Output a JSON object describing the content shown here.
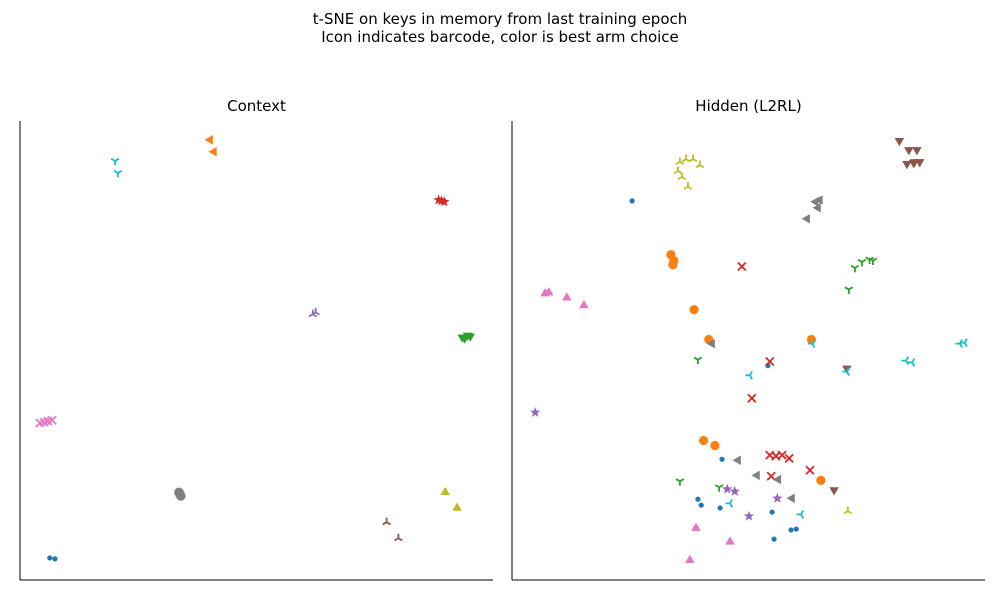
{
  "figure": {
    "title_line1": "t-SNE on keys in memory from last training epoch",
    "title_line2": "Icon indicates barcode, color is best arm choice"
  },
  "colors": {
    "blue": "#1f77b4",
    "orange": "#ff7f0e",
    "green": "#2ca02c",
    "red": "#d62728",
    "purple": "#9467bd",
    "brown": "#8c564b",
    "pink": "#e377c2",
    "gray": "#7f7f7f",
    "olive": "#bcbd22",
    "cyan": "#17becf"
  },
  "chart_data": [
    {
      "type": "scatter",
      "title": "Context",
      "xlim": [
        0,
        100
      ],
      "ylim": [
        0,
        100
      ],
      "axes": "left-bottom spines only, no ticks",
      "grid": false,
      "points": [
        {
          "x": 6.3,
          "y": 4.8,
          "marker": "point",
          "color": "blue"
        },
        {
          "x": 7.4,
          "y": 4.6,
          "marker": "point",
          "color": "blue"
        },
        {
          "x": 40.2,
          "y": 95.9,
          "marker": "triangle_left",
          "color": "orange"
        },
        {
          "x": 41.0,
          "y": 93.3,
          "marker": "triangle_left",
          "color": "orange"
        },
        {
          "x": 93.5,
          "y": 52.9,
          "marker": "triangle_down",
          "color": "green"
        },
        {
          "x": 94.6,
          "y": 53.3,
          "marker": "triangle_down",
          "color": "green"
        },
        {
          "x": 95.2,
          "y": 53.1,
          "marker": "triangle_down",
          "color": "green"
        },
        {
          "x": 94.0,
          "y": 52.7,
          "marker": "triangle_down",
          "color": "green"
        },
        {
          "x": 88.5,
          "y": 82.8,
          "marker": "star",
          "color": "red"
        },
        {
          "x": 89.7,
          "y": 82.4,
          "marker": "star",
          "color": "red"
        },
        {
          "x": 89.1,
          "y": 82.6,
          "marker": "star",
          "color": "red"
        },
        {
          "x": 61.9,
          "y": 57.9,
          "marker": "tri",
          "color": "purple"
        },
        {
          "x": 62.5,
          "y": 58.3,
          "marker": "tri",
          "color": "purple"
        },
        {
          "x": 77.5,
          "y": 12.6,
          "marker": "tri",
          "color": "brown"
        },
        {
          "x": 80.0,
          "y": 9.1,
          "marker": "tri",
          "color": "brown"
        },
        {
          "x": 4.2,
          "y": 34.2,
          "marker": "x",
          "color": "pink"
        },
        {
          "x": 5.9,
          "y": 34.6,
          "marker": "x",
          "color": "pink"
        },
        {
          "x": 6.8,
          "y": 34.8,
          "marker": "x",
          "color": "pink"
        },
        {
          "x": 5.1,
          "y": 34.4,
          "marker": "x",
          "color": "pink"
        },
        {
          "x": 33.6,
          "y": 19.1,
          "marker": "octagon",
          "color": "gray"
        },
        {
          "x": 34.0,
          "y": 18.3,
          "marker": "octagon",
          "color": "gray"
        },
        {
          "x": 33.8,
          "y": 18.7,
          "marker": "octagon",
          "color": "gray"
        },
        {
          "x": 89.9,
          "y": 19.1,
          "marker": "triangle_up",
          "color": "olive"
        },
        {
          "x": 92.4,
          "y": 15.7,
          "marker": "triangle_up",
          "color": "olive"
        },
        {
          "x": 20.1,
          "y": 91.3,
          "marker": "tri_down",
          "color": "cyan"
        },
        {
          "x": 20.7,
          "y": 88.7,
          "marker": "tri_down",
          "color": "cyan"
        }
      ]
    },
    {
      "type": "scatter",
      "title": "Hidden (L2RL)",
      "xlim": [
        0,
        100
      ],
      "ylim": [
        0,
        100
      ],
      "axes": "left-bottom spines only, no ticks",
      "grid": false,
      "points": [
        {
          "x": 25.4,
          "y": 82.6,
          "marker": "point",
          "color": "blue"
        },
        {
          "x": 54.1,
          "y": 46.7,
          "marker": "point",
          "color": "blue"
        },
        {
          "x": 44.4,
          "y": 26.3,
          "marker": "point",
          "color": "blue"
        },
        {
          "x": 39.3,
          "y": 17.6,
          "marker": "point",
          "color": "blue"
        },
        {
          "x": 40.0,
          "y": 16.3,
          "marker": "point",
          "color": "blue"
        },
        {
          "x": 44.0,
          "y": 15.7,
          "marker": "point",
          "color": "blue"
        },
        {
          "x": 55.0,
          "y": 14.8,
          "marker": "point",
          "color": "blue"
        },
        {
          "x": 59.0,
          "y": 10.9,
          "marker": "point",
          "color": "blue"
        },
        {
          "x": 60.1,
          "y": 11.1,
          "marker": "point",
          "color": "blue"
        },
        {
          "x": 55.4,
          "y": 8.9,
          "marker": "point",
          "color": "blue"
        },
        {
          "x": 33.6,
          "y": 70.9,
          "marker": "circle",
          "color": "orange"
        },
        {
          "x": 34.2,
          "y": 69.6,
          "marker": "circle",
          "color": "orange"
        },
        {
          "x": 34.0,
          "y": 68.7,
          "marker": "circle",
          "color": "orange"
        },
        {
          "x": 38.5,
          "y": 58.9,
          "marker": "circle",
          "color": "orange"
        },
        {
          "x": 41.6,
          "y": 52.4,
          "marker": "circle",
          "color": "orange"
        },
        {
          "x": 63.3,
          "y": 52.4,
          "marker": "circle",
          "color": "orange"
        },
        {
          "x": 40.5,
          "y": 30.4,
          "marker": "circle",
          "color": "orange"
        },
        {
          "x": 42.9,
          "y": 29.3,
          "marker": "circle",
          "color": "orange"
        },
        {
          "x": 65.3,
          "y": 21.7,
          "marker": "circle",
          "color": "orange"
        },
        {
          "x": 72.5,
          "y": 68.0,
          "marker": "tri_down",
          "color": "green"
        },
        {
          "x": 74.0,
          "y": 69.3,
          "marker": "tri_down",
          "color": "green"
        },
        {
          "x": 75.6,
          "y": 69.8,
          "marker": "tri_down",
          "color": "green"
        },
        {
          "x": 76.3,
          "y": 69.6,
          "marker": "tri_down",
          "color": "green"
        },
        {
          "x": 71.2,
          "y": 63.3,
          "marker": "tri_down",
          "color": "green"
        },
        {
          "x": 39.3,
          "y": 48.0,
          "marker": "tri_down",
          "color": "green"
        },
        {
          "x": 35.5,
          "y": 21.5,
          "marker": "tri_down",
          "color": "green"
        },
        {
          "x": 43.8,
          "y": 20.2,
          "marker": "tri_down",
          "color": "green"
        },
        {
          "x": 48.6,
          "y": 68.3,
          "marker": "x",
          "color": "red"
        },
        {
          "x": 54.5,
          "y": 47.6,
          "marker": "x",
          "color": "red"
        },
        {
          "x": 50.7,
          "y": 39.6,
          "marker": "x",
          "color": "red"
        },
        {
          "x": 54.5,
          "y": 27.2,
          "marker": "x",
          "color": "red"
        },
        {
          "x": 55.8,
          "y": 27.0,
          "marker": "x",
          "color": "red"
        },
        {
          "x": 57.1,
          "y": 27.2,
          "marker": "x",
          "color": "red"
        },
        {
          "x": 58.6,
          "y": 26.5,
          "marker": "x",
          "color": "red"
        },
        {
          "x": 54.8,
          "y": 22.6,
          "marker": "x",
          "color": "red"
        },
        {
          "x": 63.0,
          "y": 23.9,
          "marker": "x",
          "color": "red"
        },
        {
          "x": 4.9,
          "y": 36.5,
          "marker": "star",
          "color": "purple"
        },
        {
          "x": 45.5,
          "y": 19.8,
          "marker": "star",
          "color": "purple"
        },
        {
          "x": 47.1,
          "y": 19.3,
          "marker": "star",
          "color": "purple"
        },
        {
          "x": 56.1,
          "y": 17.8,
          "marker": "star",
          "color": "purple"
        },
        {
          "x": 50.1,
          "y": 13.9,
          "marker": "star",
          "color": "purple"
        },
        {
          "x": 81.9,
          "y": 95.7,
          "marker": "triangle_down",
          "color": "brown"
        },
        {
          "x": 83.9,
          "y": 93.7,
          "marker": "triangle_down",
          "color": "brown"
        },
        {
          "x": 84.9,
          "y": 90.9,
          "marker": "triangle_down",
          "color": "brown"
        },
        {
          "x": 83.5,
          "y": 90.7,
          "marker": "triangle_down",
          "color": "brown"
        },
        {
          "x": 85.1,
          "y": 91.1,
          "marker": "triangle_down",
          "color": "brown"
        },
        {
          "x": 86.2,
          "y": 91.1,
          "marker": "triangle_down",
          "color": "brown"
        },
        {
          "x": 85.6,
          "y": 93.7,
          "marker": "triangle_down",
          "color": "brown"
        },
        {
          "x": 70.8,
          "y": 46.1,
          "marker": "triangle_down",
          "color": "brown"
        },
        {
          "x": 68.1,
          "y": 19.6,
          "marker": "triangle_down",
          "color": "brown"
        },
        {
          "x": 7.0,
          "y": 62.4,
          "marker": "triangle_up",
          "color": "pink"
        },
        {
          "x": 7.8,
          "y": 62.6,
          "marker": "triangle_up",
          "color": "pink"
        },
        {
          "x": 11.6,
          "y": 61.5,
          "marker": "triangle_up",
          "color": "pink"
        },
        {
          "x": 15.2,
          "y": 59.8,
          "marker": "triangle_up",
          "color": "pink"
        },
        {
          "x": 38.9,
          "y": 11.3,
          "marker": "triangle_up",
          "color": "pink"
        },
        {
          "x": 46.1,
          "y": 8.3,
          "marker": "triangle_up",
          "color": "pink"
        },
        {
          "x": 37.6,
          "y": 4.3,
          "marker": "triangle_up",
          "color": "pink"
        },
        {
          "x": 64.2,
          "y": 82.4,
          "marker": "triangle_left",
          "color": "gray"
        },
        {
          "x": 65.1,
          "y": 82.8,
          "marker": "triangle_left",
          "color": "gray"
        },
        {
          "x": 64.7,
          "y": 81.1,
          "marker": "triangle_left",
          "color": "gray"
        },
        {
          "x": 62.4,
          "y": 78.7,
          "marker": "triangle_left",
          "color": "gray"
        },
        {
          "x": 42.3,
          "y": 51.5,
          "marker": "triangle_left",
          "color": "gray"
        },
        {
          "x": 47.8,
          "y": 26.1,
          "marker": "triangle_left",
          "color": "gray"
        },
        {
          "x": 51.8,
          "y": 22.8,
          "marker": "triangle_left",
          "color": "gray"
        },
        {
          "x": 56.3,
          "y": 21.9,
          "marker": "triangle_left",
          "color": "gray"
        },
        {
          "x": 59.2,
          "y": 17.8,
          "marker": "triangle_left",
          "color": "gray"
        },
        {
          "x": 35.5,
          "y": 91.1,
          "marker": "tri",
          "color": "olive"
        },
        {
          "x": 36.8,
          "y": 91.7,
          "marker": "tri",
          "color": "olive"
        },
        {
          "x": 38.3,
          "y": 91.7,
          "marker": "tri",
          "color": "olive"
        },
        {
          "x": 39.7,
          "y": 90.4,
          "marker": "tri",
          "color": "olive"
        },
        {
          "x": 35.1,
          "y": 89.1,
          "marker": "tri",
          "color": "olive"
        },
        {
          "x": 35.9,
          "y": 87.8,
          "marker": "tri",
          "color": "olive"
        },
        {
          "x": 37.2,
          "y": 85.7,
          "marker": "tri",
          "color": "olive"
        },
        {
          "x": 71.0,
          "y": 15.0,
          "marker": "tri",
          "color": "olive"
        },
        {
          "x": 94.7,
          "y": 51.5,
          "marker": "tri_left",
          "color": "cyan"
        },
        {
          "x": 95.7,
          "y": 51.7,
          "marker": "tri_left",
          "color": "cyan"
        },
        {
          "x": 83.3,
          "y": 47.8,
          "marker": "tri_left",
          "color": "cyan"
        },
        {
          "x": 84.6,
          "y": 47.4,
          "marker": "tri_left",
          "color": "cyan"
        },
        {
          "x": 63.5,
          "y": 51.5,
          "marker": "tri_left",
          "color": "cyan"
        },
        {
          "x": 70.8,
          "y": 45.4,
          "marker": "tri_left",
          "color": "cyan"
        },
        {
          "x": 50.3,
          "y": 44.6,
          "marker": "tri_left",
          "color": "cyan"
        },
        {
          "x": 46.1,
          "y": 16.7,
          "marker": "tri_left",
          "color": "cyan"
        },
        {
          "x": 61.1,
          "y": 14.3,
          "marker": "tri_left",
          "color": "cyan"
        }
      ]
    }
  ]
}
